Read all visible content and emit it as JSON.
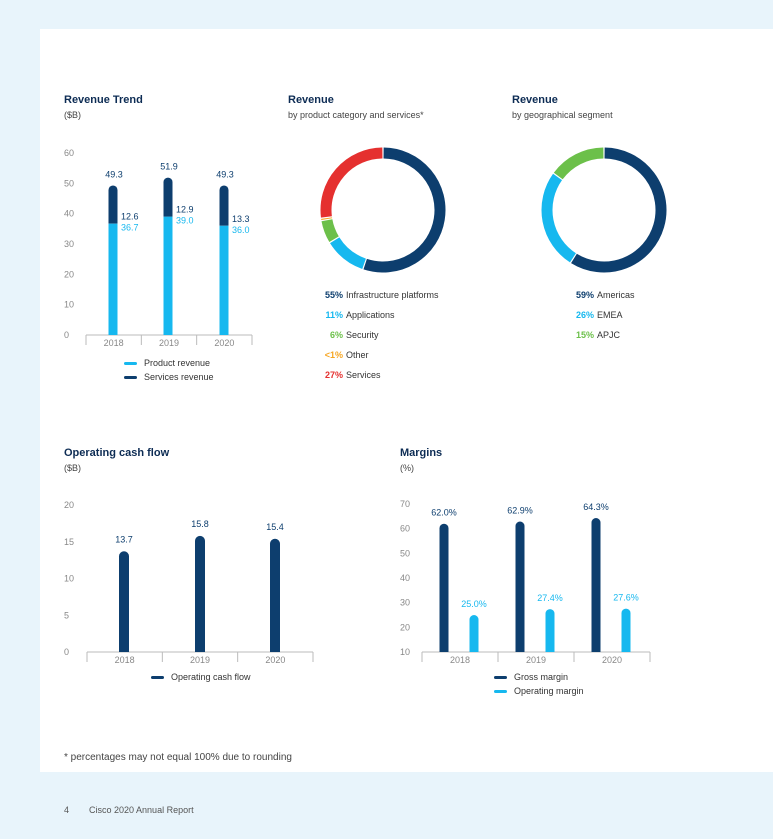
{
  "colors": {
    "dark": "#0d3e6e",
    "light": "#16b8ef",
    "security": "#6cc04a",
    "other": "#f6a623",
    "services": "#e5302f",
    "axis_text": "#888888",
    "axis_line": "#bbbbbb"
  },
  "footnote": "* percentages may not equal 100% due to rounding",
  "footer": {
    "page_number": "4",
    "report_name": "Cisco 2020 Annual Report"
  },
  "chart_data": [
    {
      "id": "revenue_trend",
      "type": "bar",
      "stacked": true,
      "title": "Revenue Trend",
      "subtitle": "($B)",
      "categories": [
        "2018",
        "2019",
        "2020"
      ],
      "ylim": [
        0,
        60
      ],
      "yticks": [
        "0",
        "10",
        "20",
        "30",
        "40",
        "50",
        "60"
      ],
      "totals": [
        "49.3",
        "51.9",
        "49.3"
      ],
      "series": [
        {
          "name": "Product revenue",
          "values": [
            36.7,
            39.0,
            36.0
          ],
          "labels": [
            "36.7",
            "39.0",
            "36.0"
          ]
        },
        {
          "name": "Services revenue",
          "values": [
            12.6,
            12.9,
            13.3
          ],
          "labels": [
            "12.6",
            "12.9",
            "13.3"
          ]
        }
      ],
      "legend": "bottom"
    },
    {
      "id": "revenue_by_category",
      "type": "pie",
      "donut": true,
      "title": "Revenue",
      "subtitle": "by product category and services*",
      "slices": [
        {
          "label": "Infrastructure platforms",
          "pct": "55%",
          "value": 55
        },
        {
          "label": "Applications",
          "pct": "11%",
          "value": 11
        },
        {
          "label": "Security",
          "pct": "6%",
          "value": 6
        },
        {
          "label": "Other",
          "pct": "<1%",
          "value": 0.6
        },
        {
          "label": "Services",
          "pct": "27%",
          "value": 27
        }
      ]
    },
    {
      "id": "revenue_by_geo",
      "type": "pie",
      "donut": true,
      "title": "Revenue",
      "subtitle": "by geographical segment",
      "slices": [
        {
          "label": "Americas",
          "pct": "59%",
          "value": 59
        },
        {
          "label": "EMEA",
          "pct": "26%",
          "value": 26
        },
        {
          "label": "APJC",
          "pct": "15%",
          "value": 15
        }
      ]
    },
    {
      "id": "operating_cash_flow",
      "type": "bar",
      "title": "Operating cash flow",
      "subtitle": "($B)",
      "categories": [
        "2018",
        "2019",
        "2020"
      ],
      "ylim": [
        0,
        20
      ],
      "yticks": [
        "0",
        "5",
        "10",
        "15",
        "20"
      ],
      "series": [
        {
          "name": "Operating cash flow",
          "values": [
            13.7,
            15.8,
            15.4
          ],
          "labels": [
            "13.7",
            "15.8",
            "15.4"
          ]
        }
      ],
      "legend": "bottom"
    },
    {
      "id": "margins",
      "type": "bar",
      "title": "Margins",
      "subtitle": "(%)",
      "categories": [
        "2018",
        "2019",
        "2020"
      ],
      "ylim": [
        10,
        70
      ],
      "yticks": [
        "10",
        "20",
        "30",
        "40",
        "50",
        "60",
        "70"
      ],
      "series": [
        {
          "name": "Gross margin",
          "values": [
            62.0,
            62.9,
            64.3
          ],
          "labels": [
            "62.0%",
            "62.9%",
            "64.3%"
          ]
        },
        {
          "name": "Operating margin",
          "values": [
            25.0,
            27.4,
            27.6
          ],
          "labels": [
            "25.0%",
            "27.4%",
            "27.6%"
          ]
        }
      ],
      "legend": "bottom"
    }
  ]
}
